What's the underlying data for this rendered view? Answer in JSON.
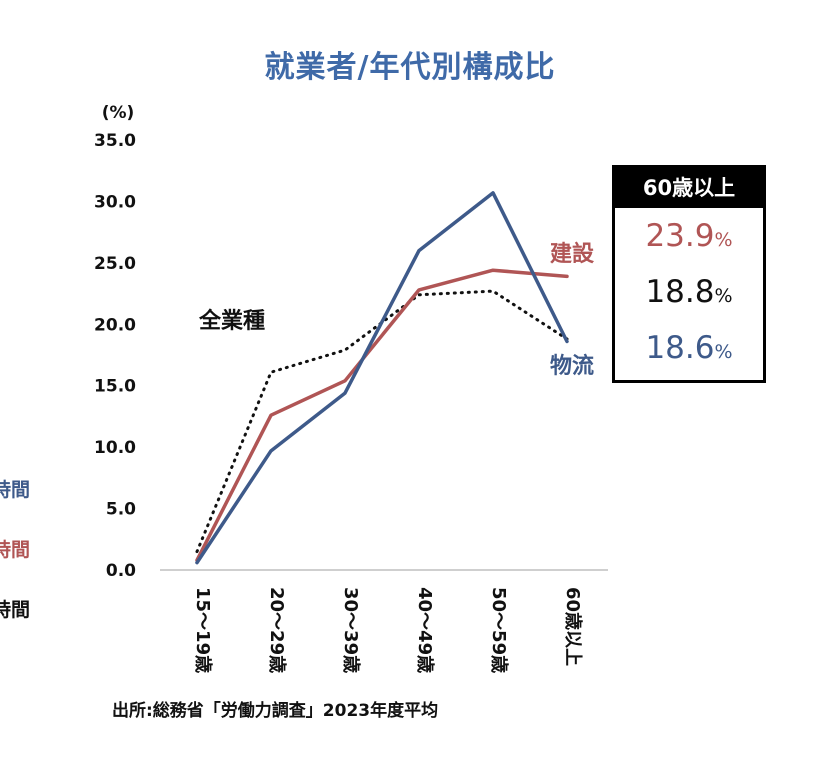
{
  "title": "就業者/年代別構成比",
  "source": "出所:総務省「労働力調査」2023年度平均",
  "chart_data": {
    "type": "line",
    "unit_label": "(%)",
    "ylim": [
      0,
      35
    ],
    "yticks": [
      "0.0",
      "5.0",
      "10.0",
      "15.0",
      "20.0",
      "25.0",
      "30.0",
      "35.0"
    ],
    "categories": [
      "15～19歳",
      "20～29歳",
      "30～39歳",
      "40～49歳",
      "50～59歳",
      "60歳以上"
    ],
    "series": [
      {
        "name": "全業種",
        "color": "#111111",
        "style": "dotted",
        "values": [
          1.5,
          16.1,
          17.9,
          22.4,
          22.7,
          18.8
        ]
      },
      {
        "name": "建設",
        "color": "#b05555",
        "style": "solid",
        "values": [
          0.8,
          12.6,
          15.4,
          22.8,
          24.4,
          23.9
        ]
      },
      {
        "name": "物流",
        "color": "#3e5a8a",
        "style": "solid",
        "values": [
          0.6,
          9.7,
          14.4,
          26.0,
          30.7,
          18.6
        ]
      }
    ],
    "legend_fragment": {
      "text": "時間",
      "colors": [
        "#3e5a8a",
        "#b05555",
        "#111111"
      ]
    }
  },
  "summary_box": {
    "header": "60歳以上",
    "rows": [
      {
        "value": "23.9",
        "pct": "%",
        "color": "#b05555"
      },
      {
        "value": "18.8",
        "pct": "%",
        "color": "#111111"
      },
      {
        "value": "18.6",
        "pct": "%",
        "color": "#3e5a8a"
      }
    ]
  }
}
